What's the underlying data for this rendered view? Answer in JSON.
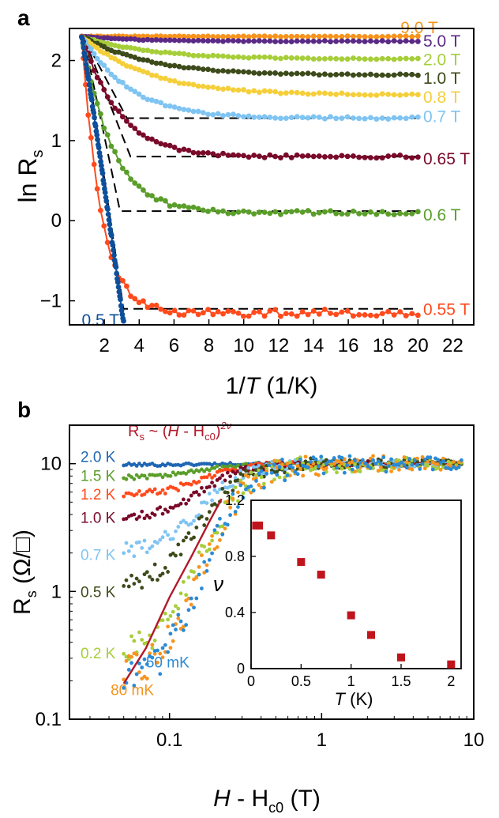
{
  "chart_data": [
    {
      "panel_label": "a",
      "type": "line",
      "xlabel_pre": "1/",
      "xlabel_var": "T",
      "xlabel_post": " (1/K)",
      "ylabel_main": "ln R",
      "ylabel_sub": "s",
      "xlim": [
        0,
        23.2
      ],
      "ylim": [
        -1.3,
        2.4
      ],
      "xticks": [
        2,
        4,
        6,
        8,
        10,
        12,
        14,
        16,
        18,
        20,
        22
      ],
      "yticks": [
        -1,
        0,
        1,
        2
      ],
      "series": [
        {
          "name": "9.0 T",
          "color": "#f7941d",
          "start": 2.3,
          "end": 2.3,
          "k": 1,
          "noise": 0.005,
          "label_x": 19.0,
          "label_y": 2.42
        },
        {
          "name": "5.0 T",
          "color": "#5b2a86",
          "start": 2.3,
          "end": 2.24,
          "k": 0.3,
          "noise": 0.006,
          "label_x": 20.3,
          "label_y": 2.25
        },
        {
          "name": "2.0 T",
          "color": "#a6ce39",
          "start": 2.3,
          "end": 2.02,
          "k": 0.25,
          "noise": 0.008,
          "label_x": 20.3,
          "label_y": 2.02
        },
        {
          "name": "1.0 T",
          "color": "#3d4a1a",
          "start": 2.3,
          "end": 1.82,
          "k": 0.25,
          "noise": 0.01,
          "label_x": 20.3,
          "label_y": 1.79
        },
        {
          "name": "0.8 T",
          "color": "#f5cf3a",
          "start": 2.3,
          "end": 1.57,
          "k": 0.25,
          "noise": 0.012,
          "label_x": 20.3,
          "label_y": 1.55
        },
        {
          "name": "0.7 T",
          "color": "#7fc4f2",
          "start": 2.3,
          "end": 1.28,
          "k": 0.35,
          "noise": 0.015,
          "label_x": 20.3,
          "label_y": 1.31
        },
        {
          "name": "0.65 T",
          "color": "#7a0a2a",
          "start": 2.3,
          "end": 0.8,
          "k": 0.45,
          "noise": 0.02,
          "label_x": 20.3,
          "label_y": 0.78
        },
        {
          "name": "0.6 T",
          "color": "#5a9e2a",
          "start": 2.3,
          "end": 0.1,
          "k": 0.55,
          "noise": 0.025,
          "label_x": 20.3,
          "label_y": 0.08
        },
        {
          "name": "0.55 T",
          "color": "#ff4a1c",
          "start": 2.3,
          "end": -1.15,
          "k": 0.9,
          "noise": 0.045,
          "label_x": 20.3,
          "label_y": -1.1
        },
        {
          "name": "0.5 T",
          "color": "#0e4f9a",
          "start": 2.3,
          "end": -1.3,
          "k": 0,
          "noise": 0.02,
          "label_x": 0.7,
          "label_y": -1.23
        }
      ],
      "dashed_guides": [
        {
          "x": [
            0.8,
            3.3,
            20
          ],
          "y": [
            2.3,
            1.28,
            1.28
          ]
        },
        {
          "x": [
            0.8,
            3.5,
            20
          ],
          "y": [
            2.3,
            0.8,
            0.8
          ]
        },
        {
          "x": [
            0.8,
            2.9,
            20
          ],
          "y": [
            2.3,
            0.12,
            0.12
          ]
        },
        {
          "x": [
            0.8,
            3.1,
            20
          ],
          "y": [
            2.3,
            -1.1,
            -1.1
          ]
        }
      ]
    },
    {
      "panel_label": "b",
      "type": "scatter",
      "x_scale": "log",
      "y_scale": "log",
      "xlabel_var": "H",
      "xlabel_mid": " - H",
      "xlabel_sub": "c0",
      "xlabel_post": " (T)",
      "ylabel_main": "R",
      "ylabel_sub": "s",
      "ylabel_post": " (Ω/□)",
      "xlim": [
        0.022,
        10
      ],
      "ylim": [
        0.1,
        20
      ],
      "xticks": [
        0.1,
        1,
        10
      ],
      "xtick_labels": [
        "0.1",
        "1",
        "10"
      ],
      "yticks": [
        0.1,
        1,
        10
      ],
      "ytick_labels": [
        "0.1",
        "1",
        "10"
      ],
      "fit_label_pre": "R",
      "fit_label_sub": "s",
      "fit_label_mid": " ~ (",
      "fit_label_var": "H",
      "fit_label_rest": " - H",
      "fit_label_sub2": "c0",
      "fit_label_close": ")",
      "fit_label_exp": "2ν",
      "fit_line": {
        "x": [
          0.05,
          0.07,
          0.1,
          0.14,
          0.18,
          0.22
        ],
        "y": [
          0.19,
          0.36,
          0.9,
          1.9,
          3.4,
          5.3
        ]
      },
      "series": [
        {
          "name": "2.0 K",
          "color": "#1f66b3",
          "low": 9.8,
          "noise": 0.012,
          "label_x": 0.026,
          "label_y": 11.4
        },
        {
          "name": "1.5 K",
          "color": "#5a9e2a",
          "low": 7.8,
          "noise": 0.02,
          "label_x": 0.026,
          "label_y": 8.1
        },
        {
          "name": "1.2 K",
          "color": "#ff4a1c",
          "low": 5.6,
          "noise": 0.03,
          "label_x": 0.026,
          "label_y": 5.8
        },
        {
          "name": "1.0 K",
          "color": "#7a0a2a",
          "low": 3.7,
          "noise": 0.04,
          "label_x": 0.026,
          "label_y": 3.8
        },
        {
          "name": "0.7 K",
          "color": "#7fc4f2",
          "low": 2.0,
          "noise": 0.06,
          "label_x": 0.026,
          "label_y": 1.95
        },
        {
          "name": "0.5 K",
          "color": "#3d4a1a",
          "low": 1.1,
          "noise": 0.08,
          "label_x": 0.026,
          "label_y": 1.0
        },
        {
          "name": "0.2 K",
          "color": "#a6ce39",
          "low": 0.32,
          "noise": 0.12,
          "label_x": 0.026,
          "label_y": 0.33
        },
        {
          "name": "80 mK",
          "color": "#f7941d",
          "low": 0.2,
          "noise": 0.14,
          "label_x": 0.041,
          "label_y": 0.17
        },
        {
          "name": "50 mK",
          "color": "#2a8ad6",
          "low": 0.17,
          "noise": 0.14,
          "label_x": 0.07,
          "label_y": 0.28
        }
      ],
      "inset": {
        "type": "scatter",
        "xlabel_var": "T",
        "xlabel_post": " (K)",
        "ylabel": "ν",
        "xlim": [
          0,
          2.1
        ],
        "ylim": [
          0,
          1.2
        ],
        "xticks": [
          0,
          0.5,
          1,
          1.5,
          2
        ],
        "xtick_labels": [
          "0",
          "0.5",
          "1",
          "1.5",
          "2"
        ],
        "yticks": [
          0,
          0.4,
          0.8,
          1.2
        ],
        "ytick_labels": [
          "0",
          "0.4",
          "0.8",
          "1.2"
        ],
        "color": "#c0141c",
        "x": [
          0.05,
          0.08,
          0.2,
          0.5,
          0.7,
          1.0,
          1.2,
          1.5,
          2.0
        ],
        "y": [
          1.02,
          1.02,
          0.95,
          0.76,
          0.67,
          0.38,
          0.24,
          0.08,
          0.03
        ]
      }
    }
  ]
}
